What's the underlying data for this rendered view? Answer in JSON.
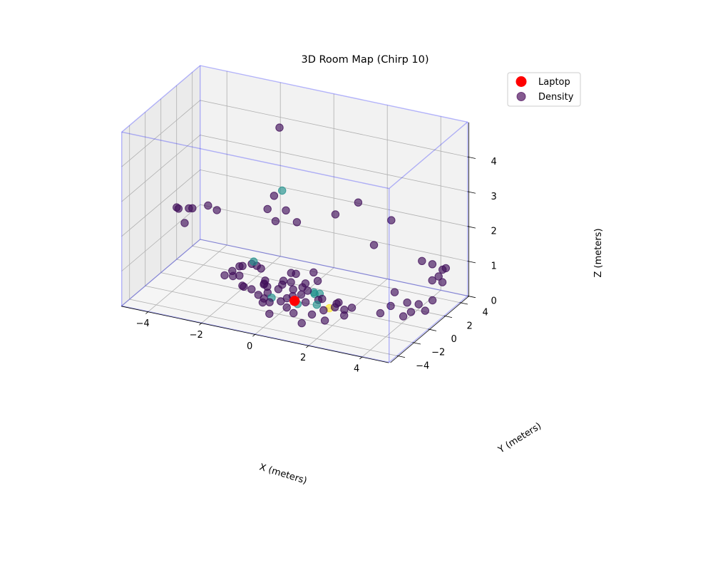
{
  "chart_data": {
    "type": "scatter",
    "projection": "3d",
    "title": "3D Room Map (Chirp 10)",
    "xlabel": "X (meters)",
    "ylabel": "Y (meters)",
    "zlabel": "Z (meters)",
    "xticks": [
      "−4",
      "−2",
      "0",
      "2",
      "4"
    ],
    "yticks": [
      "−4",
      "−2",
      "0",
      "2",
      "4"
    ],
    "zticks": [
      "0",
      "1",
      "2",
      "3",
      "4"
    ],
    "xlim": [
      -5,
      5
    ],
    "ylim": [
      -5,
      5
    ],
    "zlim": [
      0,
      5
    ],
    "grid": true,
    "legend_position": "top-right",
    "colors": {
      "laptop": "#ff0000",
      "density_low": "#440154",
      "density_mid": "#21918c",
      "density_high": "#fde725",
      "room_box": "#0000ff"
    },
    "series": [
      {
        "name": "Laptop",
        "marker": "red-circle",
        "points": [
          [
            0,
            0,
            0
          ]
        ]
      },
      {
        "name": "Density",
        "colormap": "viridis",
        "points": [
          [
            -0.8,
            0.8,
            4.7,
            0.05
          ],
          [
            -1.2,
            2.5,
            2.5,
            0.5
          ],
          [
            -1.0,
            2.3,
            2.0,
            0.05
          ],
          [
            -1.5,
            2.5,
            2.3,
            0.05
          ],
          [
            -1.6,
            2.0,
            2.0,
            0.05
          ],
          [
            -1.3,
            2.0,
            1.7,
            0.05
          ],
          [
            -0.5,
            2.0,
            1.8,
            0.05
          ],
          [
            0.5,
            3.5,
            1.9,
            0.05
          ],
          [
            1.5,
            3.0,
            2.5,
            0.05
          ],
          [
            2.5,
            3.8,
            2.0,
            0.05
          ],
          [
            2.0,
            3.3,
            1.3,
            0.05
          ],
          [
            -4.5,
            0.3,
            1.9,
            0.05
          ],
          [
            -4.4,
            0.2,
            1.9,
            0.05
          ],
          [
            -4.1,
            0.5,
            1.9,
            0.05
          ],
          [
            -4.0,
            0.6,
            1.9,
            0.05
          ],
          [
            -4.2,
            0.3,
            1.5,
            0.05
          ],
          [
            -3.5,
            0.9,
            2.0,
            0.05
          ],
          [
            -3.2,
            1.0,
            1.9,
            0.05
          ],
          [
            4.5,
            3.5,
            0.6,
            0.05
          ],
          [
            4.6,
            3.6,
            1.0,
            0.05
          ],
          [
            4.3,
            2.9,
            1.2,
            0.05
          ],
          [
            4.0,
            2.6,
            1.3,
            0.05
          ],
          [
            4.5,
            2.2,
            0.9,
            0.05
          ],
          [
            4.8,
            2.0,
            1.1,
            0.05
          ],
          [
            4.8,
            2.5,
            1.2,
            0.05
          ],
          [
            4.2,
            1.5,
            0.3,
            0.05
          ],
          [
            4.6,
            1.9,
            0.4,
            0.05
          ],
          [
            4.5,
            1.3,
            0.2,
            0.05
          ],
          [
            4.0,
            1.2,
            0.1,
            0.05
          ],
          [
            3.8,
            1.4,
            0.3,
            0.05
          ],
          [
            3.8,
            0.9,
            0.0,
            0.05
          ],
          [
            3.3,
            1.0,
            0.2,
            0.05
          ],
          [
            3.0,
            0.7,
            0.0,
            0.05
          ],
          [
            3.3,
            1.5,
            0.5,
            0.05
          ],
          [
            -3.0,
            1.3,
            0.0,
            0.05
          ],
          [
            -2.8,
            1.6,
            0.1,
            0.05
          ],
          [
            -2.6,
            1.0,
            0.1,
            0.05
          ],
          [
            -2.5,
            1.5,
            0.3,
            0.05
          ],
          [
            -2.3,
            1.2,
            0.4,
            0.05
          ],
          [
            -2.1,
            1.7,
            0.4,
            0.05
          ],
          [
            -2.0,
            2.0,
            0.3,
            0.05
          ],
          [
            -1.9,
            2.2,
            0.2,
            0.05
          ],
          [
            -1.6,
            1.7,
            0.0,
            0.05
          ],
          [
            -1.5,
            1.2,
            0.0,
            0.05
          ],
          [
            -1.4,
            0.9,
            0.1,
            0.05
          ],
          [
            -1.2,
            0.6,
            0.1,
            0.05
          ],
          [
            -1.1,
            0.3,
            0.0,
            0.05
          ],
          [
            -0.9,
            1.0,
            0.0,
            0.05
          ],
          [
            -0.8,
            1.3,
            0.2,
            0.05
          ],
          [
            -0.7,
            0.8,
            0.2,
            0.05
          ],
          [
            -0.6,
            1.6,
            0.4,
            0.05
          ],
          [
            -0.4,
            0.9,
            0.3,
            0.05
          ],
          [
            -0.3,
            1.2,
            0.5,
            0.05
          ],
          [
            -0.2,
            0.5,
            0.2,
            0.05
          ],
          [
            0.0,
            1.0,
            0.2,
            0.05
          ],
          [
            0.2,
            0.7,
            0.4,
            0.05
          ],
          [
            0.3,
            1.4,
            0.6,
            0.05
          ],
          [
            0.4,
            0.3,
            0.3,
            0.05
          ],
          [
            0.6,
            0.9,
            0.5,
            0.05
          ],
          [
            -1.0,
            -0.5,
            0.0,
            0.05
          ],
          [
            -1.3,
            -0.2,
            0.0,
            0.05
          ],
          [
            -0.7,
            -0.8,
            0.0,
            0.05
          ],
          [
            -0.4,
            -0.4,
            0.0,
            0.05
          ],
          [
            -0.1,
            0.1,
            0.1,
            0.05
          ],
          [
            0.5,
            -0.3,
            0.1,
            0.05
          ],
          [
            0.8,
            0.3,
            0.1,
            0.05
          ],
          [
            1.0,
            0.1,
            0.2,
            0.05
          ],
          [
            1.2,
            -0.4,
            0.0,
            0.05
          ],
          [
            1.5,
            0.5,
            0.1,
            0.05
          ],
          [
            1.6,
            -0.1,
            0.2,
            0.05
          ],
          [
            1.8,
            0.2,
            0.0,
            0.05
          ],
          [
            2.0,
            -0.5,
            0.0,
            0.05
          ],
          [
            2.2,
            -0.2,
            0.2,
            0.05
          ],
          [
            1.0,
            -1.2,
            0.0,
            0.05
          ],
          [
            0.4,
            -1.5,
            0.0,
            0.05
          ],
          [
            1.6,
            -1.6,
            0.0,
            0.05
          ],
          [
            -0.3,
            -2.2,
            0.0,
            0.05
          ],
          [
            1.0,
            -2.5,
            0.0,
            0.05
          ],
          [
            0.1,
            0.5,
            0.1,
            0.05
          ],
          [
            -0.2,
            -0.3,
            0.1,
            0.05
          ],
          [
            1.8,
            -1.0,
            0.3,
            0.05
          ],
          [
            0.0,
            -1.0,
            0.0,
            0.05
          ],
          [
            -2.1,
            0.5,
            0.0,
            0.05
          ],
          [
            -1.7,
            0.3,
            0.0,
            0.05
          ],
          [
            -1.9,
            0.0,
            0.1,
            0.05
          ],
          [
            -2.3,
            0.8,
            0.2,
            0.05
          ],
          [
            -0.9,
            -1.0,
            0.0,
            0.05
          ],
          [
            0.5,
            1.5,
            0.0,
            0.5
          ],
          [
            0.4,
            1.1,
            0.1,
            0.5
          ],
          [
            0.6,
            0.5,
            0.2,
            0.5
          ],
          [
            0.8,
            0.1,
            0.0,
            0.5
          ],
          [
            0.2,
            -0.3,
            0.0,
            0.5
          ],
          [
            -0.8,
            -0.2,
            0.0,
            0.5
          ],
          [
            -2.0,
            1.6,
            0.5,
            0.5
          ],
          [
            1.3,
            0.0,
            0.0,
            1.0
          ]
        ]
      }
    ]
  }
}
